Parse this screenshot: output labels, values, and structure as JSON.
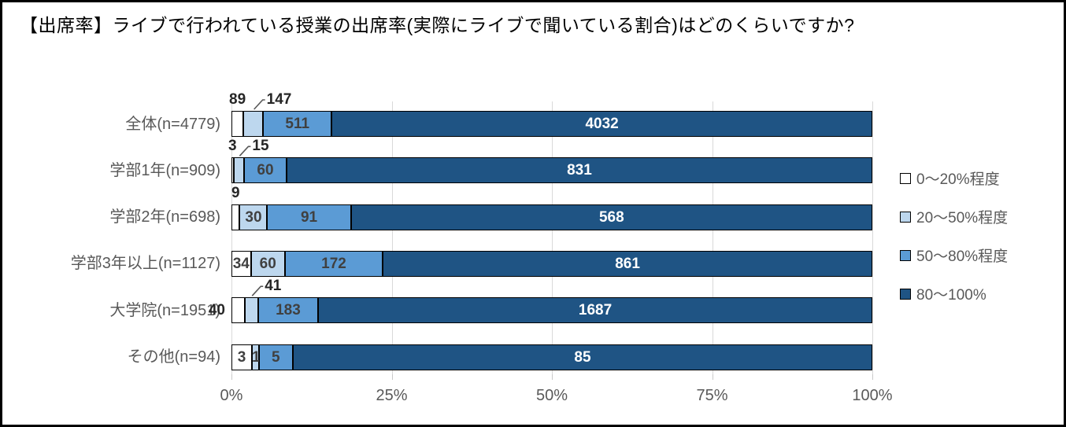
{
  "title": "【出席率】ライブで行われている授業の出席率(実際にライブで聞いている割合)はどのくらいですか?",
  "chart_data": {
    "type": "bar",
    "stacked": true,
    "orientation": "horizontal",
    "normalized": "percent-of-row-total",
    "grid": true,
    "legend_position": "right",
    "x_axis": {
      "ticks": [
        "0%",
        "25%",
        "50%",
        "75%",
        "100%"
      ],
      "min_pct": 0,
      "max_pct": 100
    },
    "categories": [
      "全体(n=4779)",
      "学部1年(n=909)",
      "学部2年(n=698)",
      "学部3年以上(n=1127)",
      "大学院(n=1951)",
      "その他(n=94)"
    ],
    "totals": [
      4779,
      909,
      698,
      1127,
      1951,
      94
    ],
    "series": [
      {
        "name": "0〜20%程度",
        "color": "#FFFFFF",
        "label_color": "#404040",
        "values": [
          89,
          3,
          9,
          34,
          40,
          3
        ]
      },
      {
        "name": "20〜50%程度",
        "color": "#BDD7EE",
        "label_color": "#404040",
        "values": [
          147,
          15,
          30,
          60,
          41,
          1
        ]
      },
      {
        "name": "50〜80%程度",
        "color": "#5B9BD5",
        "label_color": "#404040",
        "values": [
          511,
          60,
          91,
          172,
          183,
          5
        ]
      },
      {
        "name": "80〜100%",
        "color": "#1F5484",
        "label_color": "#FFFFFF",
        "values": [
          4032,
          831,
          568,
          861,
          1687,
          85
        ]
      }
    ],
    "label_layout": [
      [
        "above",
        "above-leader",
        "inside",
        "inside"
      ],
      [
        "above",
        "above-leader",
        "inside",
        "inside"
      ],
      [
        "above",
        "inside",
        "inside",
        "inside"
      ],
      [
        "inside",
        "inside",
        "inside",
        "inside"
      ],
      [
        "outside-left",
        "above-leader",
        "inside",
        "inside"
      ],
      [
        "inside",
        "inside",
        "inside",
        "inside"
      ]
    ],
    "colors": {
      "gridline": "#D9D9D9",
      "segment_border": "#000000",
      "axis_text": "#595959",
      "category_text": "#595959",
      "legend_text": "#595959",
      "outside_label": "#262626",
      "leader_line": "#595959",
      "title_text": "#000000"
    }
  }
}
